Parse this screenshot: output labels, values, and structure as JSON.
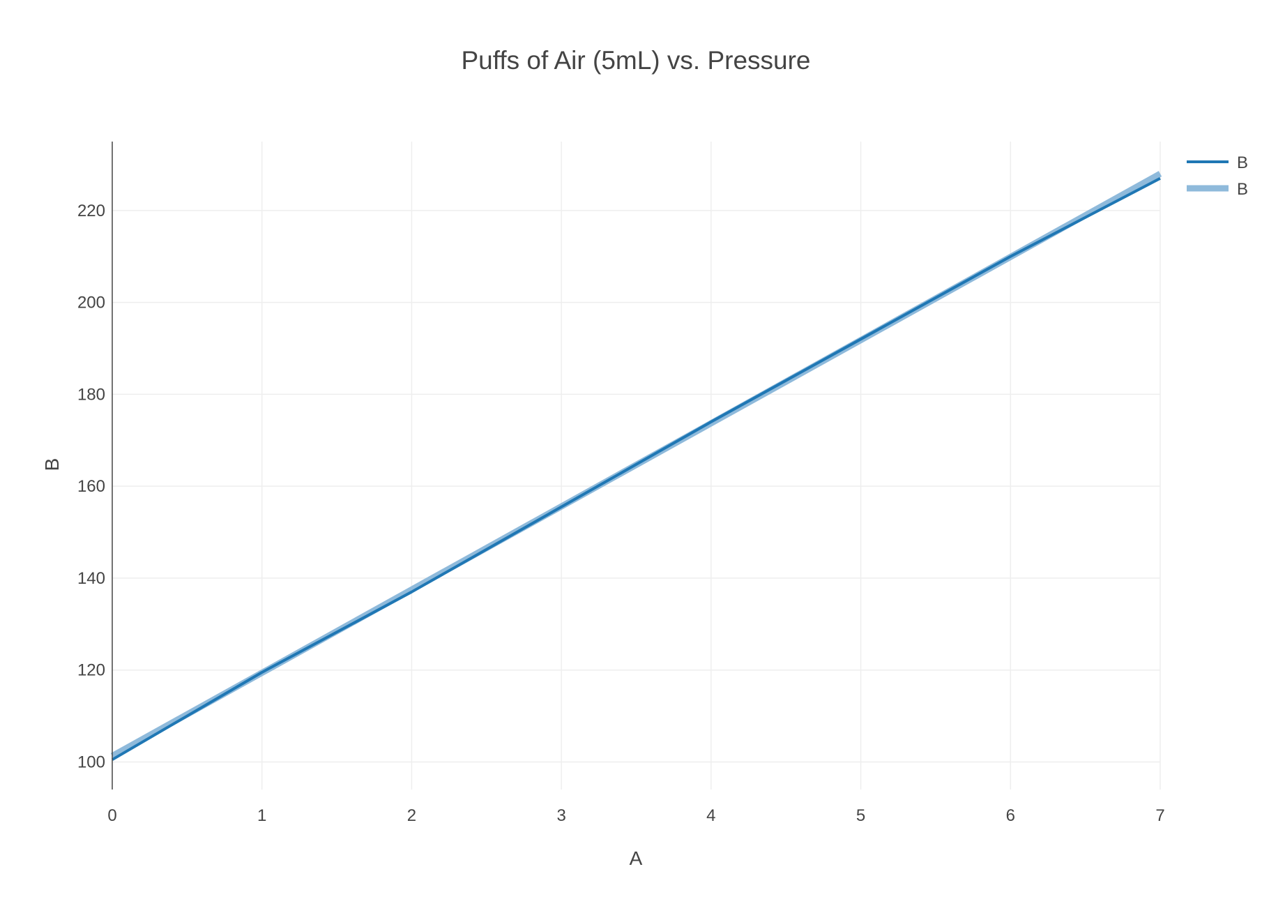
{
  "chart_data": {
    "type": "line",
    "title": "Puffs of Air (5mL) vs. Pressure",
    "xlabel": "A",
    "ylabel": "B",
    "xlim": [
      0,
      7
    ],
    "ylim": [
      94,
      235
    ],
    "x_ticks": [
      0,
      1,
      2,
      3,
      4,
      5,
      6,
      7
    ],
    "y_ticks": [
      100,
      120,
      140,
      160,
      180,
      200,
      220
    ],
    "grid": true,
    "legend_position": "top-right",
    "series": [
      {
        "name": "B",
        "color": "#1f77b4",
        "style": "thin-line",
        "x": [
          0,
          1,
          2,
          3,
          4,
          5,
          6,
          7
        ],
        "y": [
          100.5,
          119.5,
          137,
          155.5,
          174,
          192,
          210,
          227
        ]
      },
      {
        "name": "B",
        "color": "#8fbadb",
        "style": "thick-line",
        "x": [
          0,
          7
        ],
        "y": [
          101.3,
          228
        ]
      }
    ]
  }
}
